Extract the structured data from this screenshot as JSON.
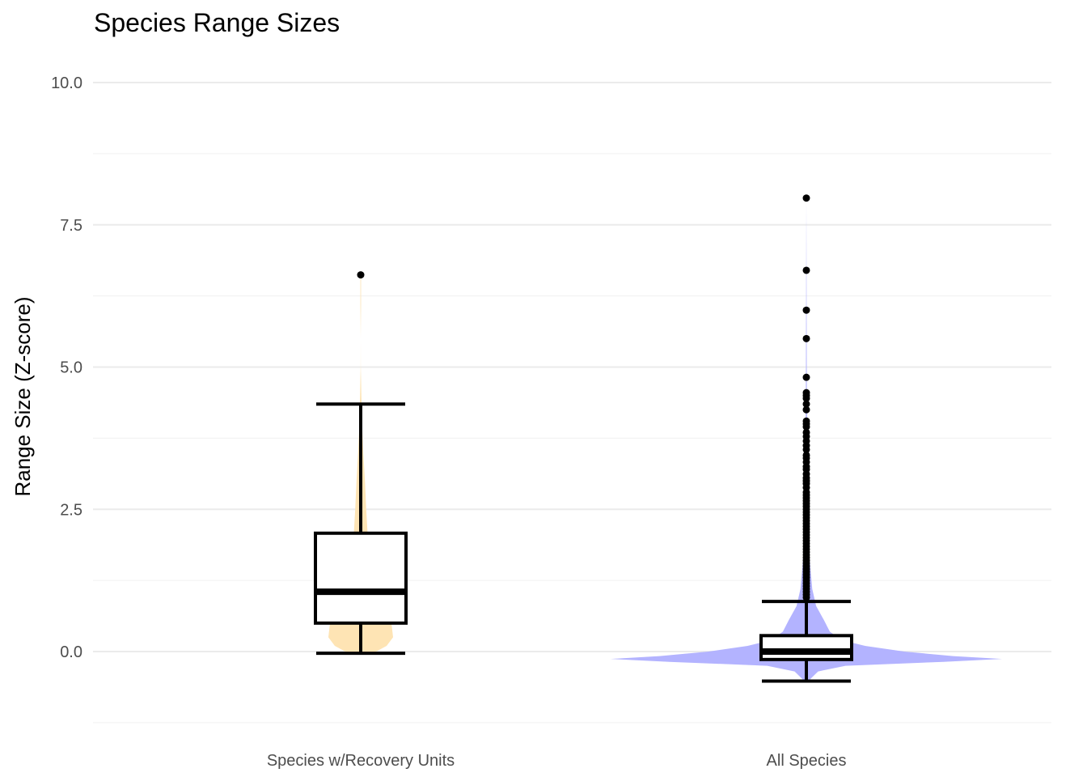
{
  "chart_data": {
    "type": "violin-box",
    "title": "Species Range Sizes",
    "xlabel": "",
    "ylabel": "Range Size (Z-score)",
    "ylim": [
      -1.25,
      10.25
    ],
    "y_ticks": [
      0.0,
      2.5,
      5.0,
      7.5,
      10.0
    ],
    "y_tick_labels": [
      "0.0",
      "2.5",
      "5.0",
      "7.5",
      "10.0"
    ],
    "grid": true,
    "legend": "none",
    "categories": [
      "Species w/Recovery Units",
      "All Species"
    ],
    "groups": [
      {
        "category": "Species w/Recovery Units",
        "color": "#fee4b4",
        "box": {
          "whisker_low": -0.03,
          "q1": 0.5,
          "median": 1.05,
          "q3": 2.08,
          "whisker_high": 4.35
        },
        "outliers": [
          6.62
        ],
        "density": [
          [
            -0.03,
            0.38
          ],
          [
            0.1,
            0.8
          ],
          [
            0.25,
            1.0
          ],
          [
            0.5,
            0.95
          ],
          [
            0.8,
            0.72
          ],
          [
            1.1,
            0.5
          ],
          [
            1.5,
            0.34
          ],
          [
            2.0,
            0.22
          ],
          [
            2.5,
            0.17
          ],
          [
            3.0,
            0.13
          ],
          [
            3.5,
            0.08
          ],
          [
            4.0,
            0.04
          ],
          [
            4.5,
            0.02
          ],
          [
            5.0,
            0.003
          ],
          [
            5.5,
            0.0
          ],
          [
            6.1,
            0.01
          ],
          [
            6.62,
            0.01
          ]
        ]
      },
      {
        "category": "All Species",
        "color": "#b3b3ff",
        "box": {
          "whisker_low": -0.52,
          "q1": -0.14,
          "median": 0.0,
          "q3": 0.28,
          "whisker_high": 0.88
        },
        "outliers": [
          7.97,
          6.7,
          6.0,
          5.5,
          4.82,
          4.55,
          4.5,
          4.45,
          4.35,
          4.25,
          4.05,
          4.0,
          3.95,
          3.85,
          3.78,
          3.7,
          3.62,
          3.55,
          3.45,
          3.4,
          3.33,
          3.25,
          3.2,
          3.12,
          3.05,
          3.0,
          2.95,
          2.88,
          2.8,
          2.75,
          2.7,
          2.65,
          2.6,
          2.55,
          2.5,
          2.45,
          2.4,
          2.35,
          2.3,
          2.25,
          2.2,
          2.15,
          2.1,
          2.05,
          2.0,
          1.95,
          1.9,
          1.85,
          1.8,
          1.75,
          1.7,
          1.65,
          1.6,
          1.55,
          1.5,
          1.45,
          1.4,
          1.35,
          1.3,
          1.25,
          1.2,
          1.15,
          1.1,
          1.05,
          1.0,
          0.95
        ],
        "density": [
          [
            -0.52,
            0.01
          ],
          [
            -0.45,
            0.03
          ],
          [
            -0.35,
            0.06
          ],
          [
            -0.25,
            0.2
          ],
          [
            -0.18,
            0.7
          ],
          [
            -0.13,
            1.0
          ],
          [
            -0.08,
            0.75
          ],
          [
            0.0,
            0.5
          ],
          [
            0.1,
            0.3
          ],
          [
            0.2,
            0.18
          ],
          [
            0.35,
            0.12
          ],
          [
            0.55,
            0.09
          ],
          [
            0.8,
            0.05
          ],
          [
            1.1,
            0.03
          ],
          [
            1.5,
            0.02
          ],
          [
            2.0,
            0.01
          ],
          [
            3.0,
            0.005
          ],
          [
            5.0,
            0.002
          ],
          [
            8.0,
            0.0
          ]
        ]
      }
    ]
  }
}
